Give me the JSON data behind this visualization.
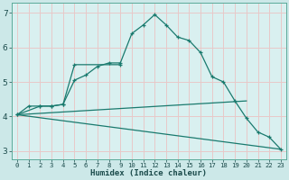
{
  "xlabel": "Humidex (Indice chaleur)",
  "bg_color": "#cce8e8",
  "plot_bg_color": "#d9f0f0",
  "grid_color": "#e8c8c8",
  "line_color": "#1a7a6e",
  "xlim": [
    -0.5,
    23.5
  ],
  "ylim": [
    2.75,
    7.3
  ],
  "yticks": [
    3,
    4,
    5,
    6,
    7
  ],
  "xticks": [
    0,
    1,
    2,
    3,
    4,
    5,
    6,
    7,
    8,
    9,
    10,
    11,
    12,
    13,
    14,
    15,
    16,
    17,
    18,
    19,
    20,
    21,
    22,
    23
  ],
  "lines": [
    {
      "x": [
        0,
        1,
        2,
        3,
        4,
        5,
        6,
        7,
        8,
        9,
        10,
        11,
        12,
        13,
        14,
        15,
        16,
        17,
        18,
        19,
        20,
        21,
        22,
        23
      ],
      "y": [
        4.05,
        4.3,
        4.3,
        4.3,
        4.35,
        5.05,
        5.2,
        5.45,
        5.55,
        5.55,
        6.4,
        6.65,
        6.95,
        6.65,
        6.3,
        6.2,
        5.85,
        5.15,
        5.0,
        4.45,
        3.95,
        3.55,
        3.4,
        3.05
      ],
      "has_markers": true
    },
    {
      "x": [
        0,
        2,
        3,
        4,
        5,
        9
      ],
      "y": [
        4.05,
        4.3,
        4.3,
        4.35,
        5.5,
        5.5
      ],
      "has_markers": true
    },
    {
      "x": [
        0,
        20
      ],
      "y": [
        4.05,
        4.45
      ],
      "has_markers": false
    },
    {
      "x": [
        0,
        23
      ],
      "y": [
        4.05,
        3.05
      ],
      "has_markers": false
    }
  ]
}
